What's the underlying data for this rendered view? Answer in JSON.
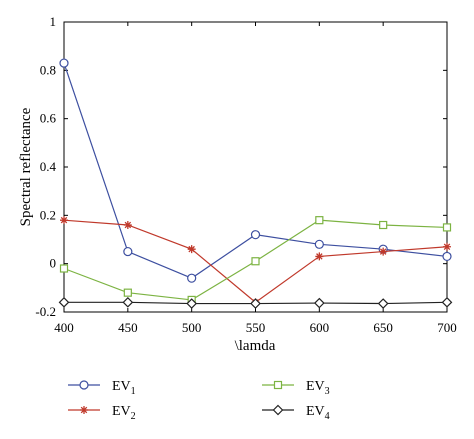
{
  "chart_data": {
    "type": "line",
    "title": "",
    "xlabel": "\\lamda",
    "ylabel": "Spectral reflectance",
    "x": [
      400,
      450,
      500,
      550,
      600,
      650,
      700
    ],
    "xlim": [
      400,
      700
    ],
    "ylim": [
      -0.2,
      1
    ],
    "xticks": [
      "400",
      "450",
      "500",
      "550",
      "600",
      "650",
      "700"
    ],
    "yticks": [
      "-0.2",
      "0",
      "0.2",
      "0.4",
      "0.6",
      "0.8",
      "1"
    ],
    "ytick_values": [
      -0.2,
      0,
      0.2,
      0.4,
      0.6,
      0.8,
      1
    ],
    "grid": false,
    "legend_placement": "bottom",
    "series": [
      {
        "name": "EV",
        "subscript": "1",
        "color": "#3d4fa0",
        "marker": "circle",
        "values": [
          0.83,
          0.05,
          -0.06,
          0.12,
          0.08,
          0.06,
          0.03
        ]
      },
      {
        "name": "EV",
        "subscript": "2",
        "color": "#c0392b",
        "marker": "asterisk",
        "values": [
          0.18,
          0.16,
          0.06,
          -0.16,
          0.03,
          0.05,
          0.07
        ]
      },
      {
        "name": "EV",
        "subscript": "3",
        "color": "#7cb342",
        "marker": "square",
        "values": [
          -0.02,
          -0.12,
          -0.15,
          0.01,
          0.18,
          0.16,
          0.15
        ]
      },
      {
        "name": "EV",
        "subscript": "4",
        "color": "#222222",
        "marker": "diamond",
        "values": [
          -0.16,
          -0.16,
          -0.165,
          -0.165,
          -0.163,
          -0.165,
          -0.16
        ]
      }
    ]
  }
}
